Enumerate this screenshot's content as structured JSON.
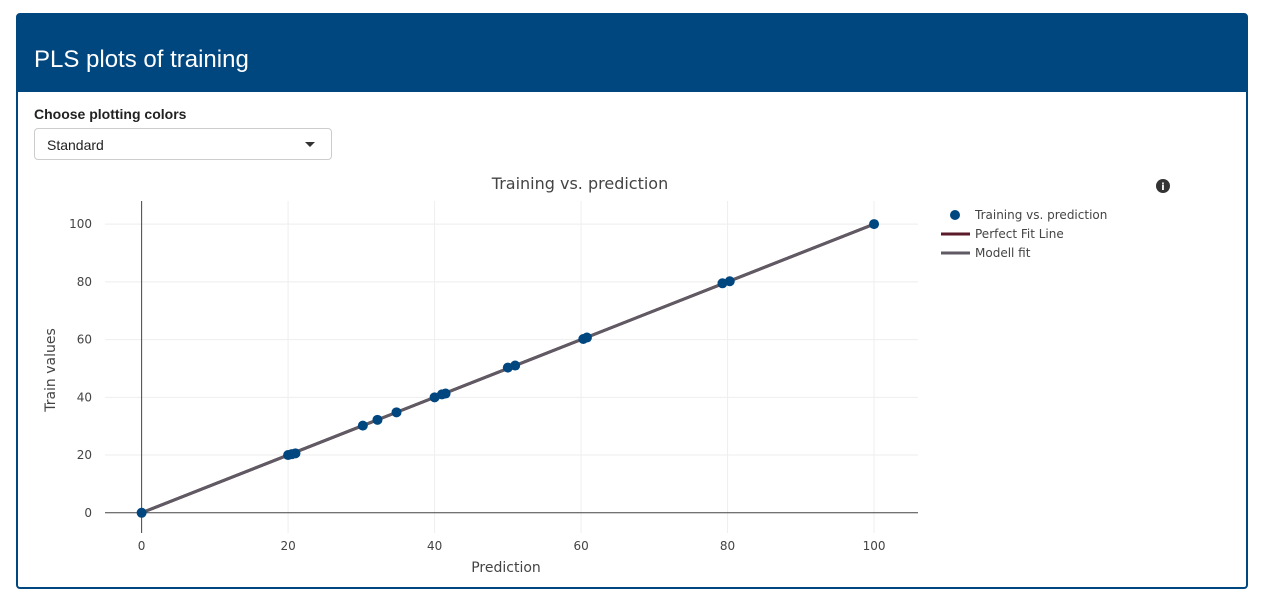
{
  "header": {
    "title": "PLS plots of training"
  },
  "controls": {
    "color_label": "Choose plotting colors",
    "color_value": "Standard"
  },
  "colors": {
    "header": "#00467f",
    "points": "#00467f",
    "perfect_fit": "#5a1a2a",
    "model_fit": "#5f5a63"
  },
  "chart_data": {
    "type": "scatter",
    "title": "Training vs. prediction",
    "xlabel": "Prediction",
    "ylabel": "Train values",
    "xlim": [
      -5,
      106
    ],
    "ylim": [
      -7,
      108
    ],
    "xticks": [
      0,
      20,
      40,
      60,
      80,
      100
    ],
    "yticks": [
      0,
      20,
      40,
      60,
      80,
      100
    ],
    "grid": true,
    "legend": "right",
    "series": [
      {
        "name": "Training vs. prediction",
        "mode": "markers",
        "x": [
          0,
          20,
          20.5,
          21,
          30.2,
          32.2,
          34.8,
          40,
          41,
          41.5,
          50,
          51,
          60.3,
          60.8,
          79.3,
          80.3,
          100
        ],
        "y": [
          0,
          20,
          20.3,
          20.6,
          30.2,
          32.2,
          34.8,
          40,
          41,
          41.3,
          50.3,
          51,
          60.2,
          60.7,
          79.5,
          80.2,
          100
        ]
      },
      {
        "name": "Perfect Fit Line",
        "mode": "line",
        "x": [
          0,
          100
        ],
        "y": [
          0,
          100
        ]
      },
      {
        "name": "Modell fit",
        "mode": "line",
        "x": [
          0,
          100
        ],
        "y": [
          0,
          100
        ]
      }
    ]
  }
}
